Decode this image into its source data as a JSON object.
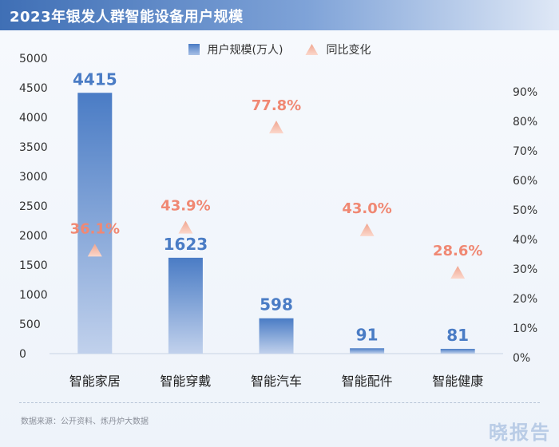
{
  "title": "2023年银发人群智能设备用户规模",
  "legend": {
    "bar_label": "用户规模(万人)",
    "tri_label": "同比变化"
  },
  "source": "数据来源：公开资料、炼丹炉大数据",
  "brand": "晓报告",
  "colors": {
    "bar_top": "#4a7cc5",
    "bar_bottom": "#c1d1ec",
    "value_label": "#4a7cc5",
    "pct_label": "#f08873",
    "tri_top": "#f0a58f",
    "tri_bottom": "#fbd8cc"
  },
  "chart_data": {
    "type": "bar",
    "categories": [
      "智能家居",
      "智能穿戴",
      "智能汽车",
      "智能配件",
      "智能健康"
    ],
    "series": [
      {
        "name": "用户规模(万人)",
        "values": [
          4415,
          1623,
          598,
          91,
          81
        ],
        "axis": "left"
      },
      {
        "name": "同比变化",
        "values": [
          36.1,
          43.9,
          77.8,
          43.0,
          28.6
        ],
        "axis": "right",
        "unit": "%"
      }
    ],
    "value_labels": [
      "4415",
      "1623",
      "598",
      "91",
      "81"
    ],
    "pct_labels": [
      "36.1%",
      "43.9%",
      "77.8%",
      "43.0%",
      "28.6%"
    ],
    "y_left": {
      "ylim": [
        0,
        5000
      ],
      "ticks": [
        "0",
        "500",
        "1000",
        "1500",
        "2000",
        "2500",
        "3000",
        "3500",
        "4000",
        "4500",
        "5000"
      ]
    },
    "y_right": {
      "ylim": [
        0,
        90
      ],
      "ticks": [
        "0%",
        "10%",
        "20%",
        "30%",
        "40%",
        "50%",
        "60%",
        "70%",
        "80%",
        "90%"
      ]
    },
    "grid": false,
    "legend_position": "top-center"
  }
}
